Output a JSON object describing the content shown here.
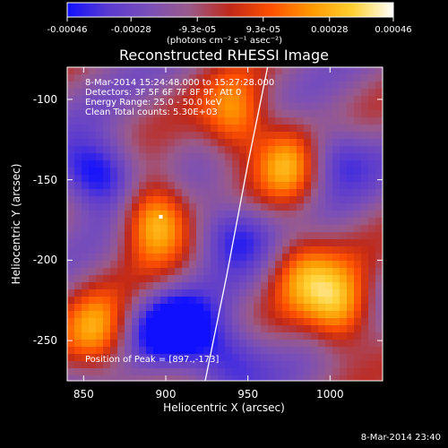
{
  "colorbar": {
    "tick_labels": [
      "-0.00046",
      "-0.00028",
      "-9.3e-05",
      "9.3e-05",
      "0.00028",
      "0.00046"
    ],
    "tick_values": [
      -0.00046,
      -0.00028,
      -9.3e-05,
      9.3e-05,
      0.00028,
      0.00046
    ],
    "units": "(photons cm⁻² s⁻¹ asec⁻²)",
    "range": [
      -0.00046,
      0.00046
    ],
    "colormap": [
      "#1010ff",
      "#5a3ad0",
      "#7a4fb8",
      "#9a5a8a",
      "#c02818",
      "#ff5000",
      "#ff9800",
      "#ffd030",
      "#ffffff"
    ]
  },
  "annotations": {
    "time": "8-Mar-2014 15:24:48.000 to 15:27:28.000",
    "detectors": "Detectors: 3F 5F 6F 7F 8F 9F, Att 0",
    "energy": "Energy Range: 25.0 - 50.0 keV",
    "clean": "Clean    Total counts: 5.30E+03",
    "peak": "Position of Peak = [897.,-173]"
  },
  "footer": {
    "timestamp": "8-Mar-2014 23:40"
  },
  "chart_data": {
    "type": "heatmap",
    "title": "Reconstructed RHESSI Image",
    "xlabel": "Heliocentric X (arcsec)",
    "ylabel": "Heliocentric Y (arcsec)",
    "xlim": [
      840,
      1032
    ],
    "ylim": [
      -275,
      -80
    ],
    "x_ticks": [
      850,
      900,
      950,
      1000
    ],
    "x_tick_labels": [
      "850",
      "900",
      "950",
      "1000"
    ],
    "y_ticks": [
      -100,
      -150,
      -200,
      -250
    ],
    "y_tick_labels": [
      "-100",
      "-150",
      "-200",
      "-250"
    ],
    "grid": false,
    "peak_position": [
      897,
      -173
    ],
    "bright_sources": [
      {
        "x": 893,
        "y": -174,
        "level": 0.95
      },
      {
        "x": 943,
        "y": -112,
        "level": 0.75
      },
      {
        "x": 975,
        "y": -140,
        "level": 0.75
      },
      {
        "x": 1006,
        "y": -230,
        "level": 0.85
      },
      {
        "x": 858,
        "y": -246,
        "level": 0.7
      },
      {
        "x": 982,
        "y": -207,
        "level": 0.6
      }
    ],
    "dark_sources": [
      {
        "x": 858,
        "y": -146,
        "level": -0.85
      },
      {
        "x": 905,
        "y": -243,
        "level": -0.9
      },
      {
        "x": 940,
        "y": -183,
        "level": -0.6
      },
      {
        "x": 1002,
        "y": -135,
        "level": -0.55
      },
      {
        "x": 938,
        "y": -260,
        "level": -0.6
      }
    ],
    "limb_curve": [
      [
        962,
        -80
      ],
      [
        950,
        -140
      ],
      [
        937,
        -210
      ],
      [
        924,
        -275
      ]
    ]
  }
}
